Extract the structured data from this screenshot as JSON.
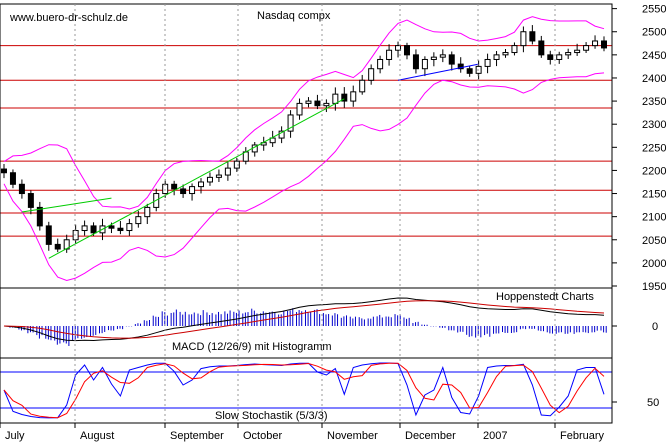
{
  "watermark": "www.buero-dr-schulz.de",
  "title": "Nasdaq compx",
  "credit": "Hoppenstedt Charts",
  "macd_label": "MACD (12/26/9) mit Histogramm",
  "stoch_label": "Slow Stochastik (5/3/3)",
  "colors": {
    "price": "#000000",
    "bollinger": "#ff00ff",
    "trendline_green": "#00cc00",
    "trendline_blue": "#0000ff",
    "support_resistance": "#cc0000",
    "macd_hist": "#0000cc",
    "macd_line": "#000000",
    "signal_line": "#cc0000",
    "stoch_k": "#0000ff",
    "stoch_d": "#ff0000"
  },
  "chart_data": {
    "type": "candlestick",
    "title": "Nasdaq compx",
    "months": [
      "July",
      "August",
      "September",
      "October",
      "November",
      "December",
      "2007",
      "February"
    ],
    "y_ticks": [
      1950,
      2000,
      2050,
      2100,
      2150,
      2200,
      2250,
      2300,
      2350,
      2400,
      2450,
      2500,
      2550
    ],
    "ylim": [
      1950,
      2560
    ],
    "horizontal_levels": [
      2470,
      2395,
      2335,
      2220,
      2157,
      2108,
      2058
    ],
    "price_series": [
      2195,
      2170,
      2150,
      2120,
      2080,
      2040,
      2030,
      2050,
      2070,
      2080,
      2065,
      2080,
      2075,
      2070,
      2085,
      2100,
      2120,
      2150,
      2170,
      2160,
      2150,
      2165,
      2175,
      2185,
      2190,
      2205,
      2220,
      2240,
      2255,
      2260,
      2270,
      2285,
      2320,
      2345,
      2350,
      2340,
      2345,
      2365,
      2350,
      2370,
      2395,
      2420,
      2440,
      2460,
      2470,
      2450,
      2420,
      2440,
      2445,
      2450,
      2430,
      2420,
      2410,
      2425,
      2440,
      2450,
      2455,
      2470,
      2500,
      2480,
      2450,
      2440,
      2450,
      2455,
      2460,
      2470,
      2480,
      2465
    ],
    "macd": {
      "y_ticks": [
        0
      ],
      "label": "MACD (12/26/9) mit Histogramm"
    },
    "stochastic": {
      "y_ticks": [
        50
      ],
      "levels": [
        80,
        20
      ],
      "label": "Slow Stochastik (5/3/3)"
    }
  }
}
